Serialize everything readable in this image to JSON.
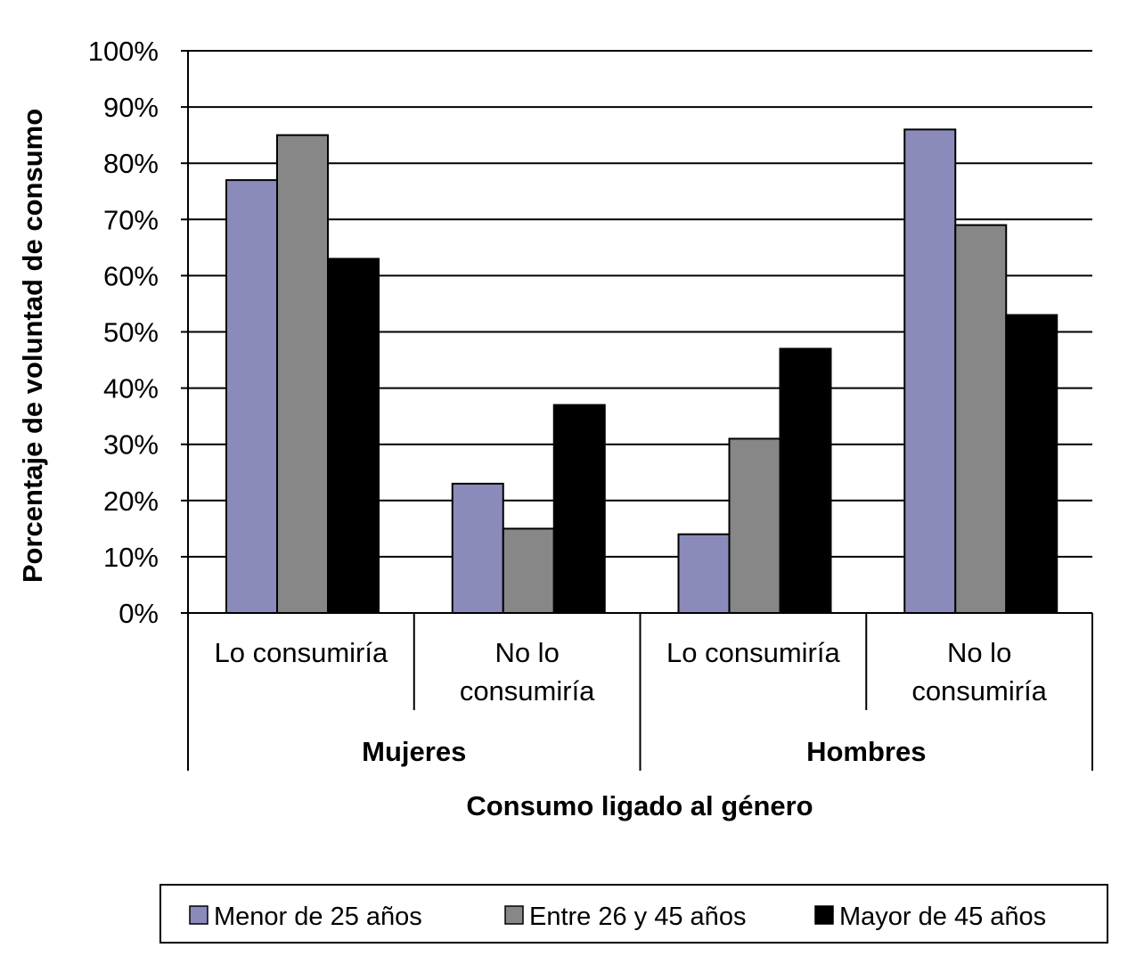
{
  "chart_data": {
    "type": "bar",
    "title": "",
    "xlabel": "Consumo ligado al género",
    "ylabel": "Porcentaje de voluntad de consumo",
    "ylim": [
      0,
      100
    ],
    "y_ticks": [
      "0%",
      "10%",
      "20%",
      "30%",
      "40%",
      "50%",
      "60%",
      "70%",
      "80%",
      "90%",
      "100%"
    ],
    "grid": true,
    "groups": [
      {
        "label": "Mujeres",
        "categories": [
          [
            "Lo consumiría"
          ],
          [
            "No lo",
            "consumiría"
          ]
        ]
      },
      {
        "label": "Hombres",
        "categories": [
          [
            "Lo consumiría"
          ],
          [
            "No lo",
            "consumiría"
          ]
        ]
      }
    ],
    "categories": [
      "Mujeres - Lo consumiría",
      "Mujeres - No lo consumiría",
      "Hombres - Lo consumiría",
      "Hombres - No lo consumiría"
    ],
    "series": [
      {
        "name": "Menor de 25 años",
        "color": "#8b8bbb",
        "values": [
          77,
          23,
          14,
          86
        ]
      },
      {
        "name": "Entre 26 y 45 años",
        "color": "#878787",
        "values": [
          85,
          15,
          31,
          69
        ]
      },
      {
        "name": "Mayor de 45 años",
        "color": "#000000",
        "values": [
          63,
          37,
          47,
          53
        ]
      }
    ],
    "legend_position": "bottom"
  }
}
